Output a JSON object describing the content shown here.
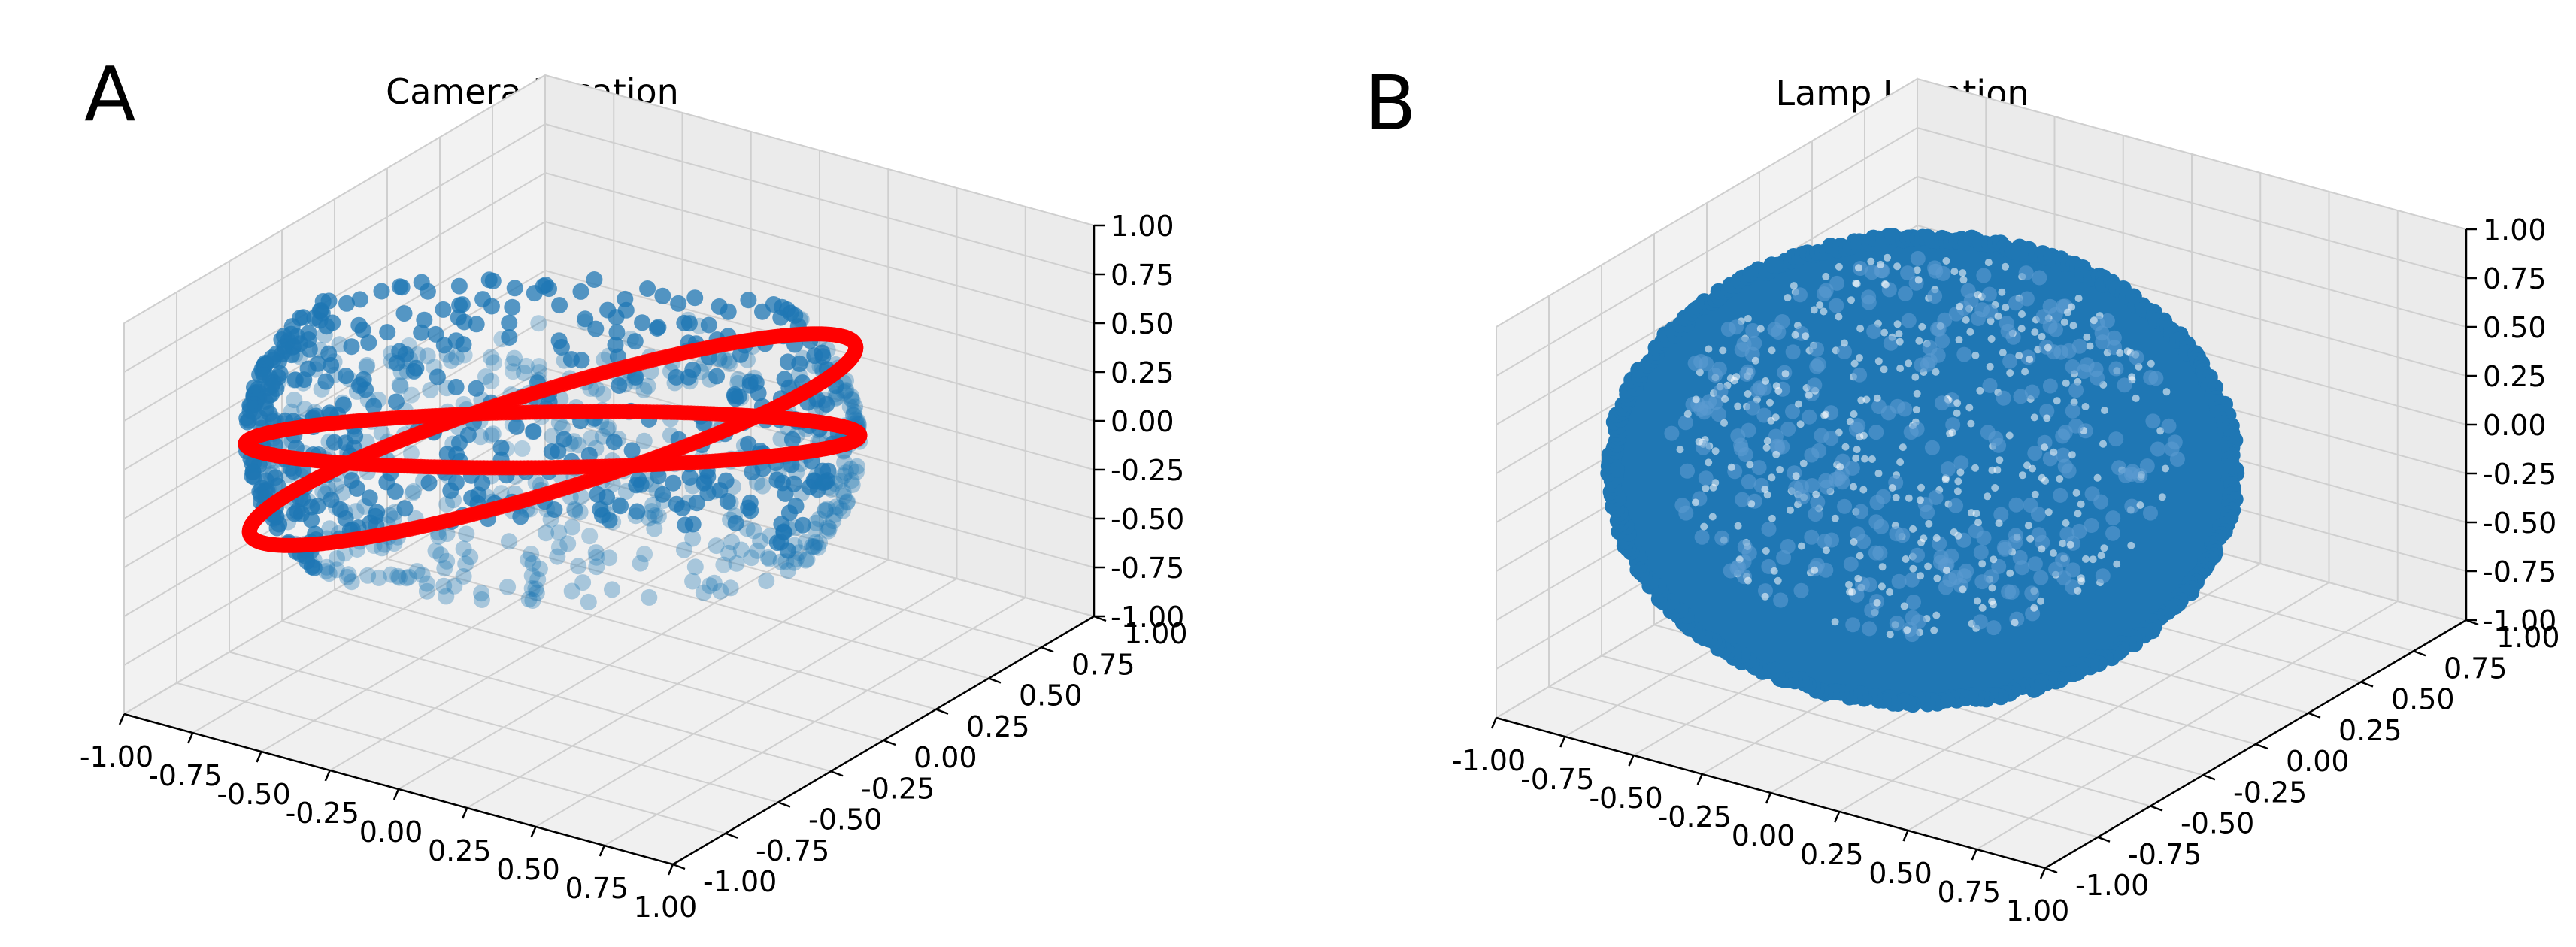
{
  "figure": {
    "panel_letters": [
      "A",
      "B"
    ]
  },
  "chart_data": [
    {
      "type": "scatter",
      "projection": "3d",
      "title": "Camera Location",
      "xlim": [
        -1.0,
        1.0
      ],
      "ylim": [
        -1.0,
        1.0
      ],
      "zlim": [
        -1.0,
        1.0
      ],
      "grid": true,
      "xticks": [
        "-1.00",
        "-0.75",
        "-0.50",
        "-0.25",
        "0.00",
        "0.25",
        "0.50",
        "0.75",
        "1.00"
      ],
      "yticks": [
        "-1.00",
        "-0.75",
        "-0.50",
        "-0.25",
        "0.00",
        "0.25",
        "0.50",
        "0.75",
        "1.00"
      ],
      "zticks": [
        "-1.00",
        "-0.75",
        "-0.50",
        "-0.25",
        "0.00",
        "0.25",
        "0.50",
        "0.75",
        "1.00"
      ],
      "series": [
        {
          "color": "#1f77b4",
          "marker": "circle",
          "distribution": "points near a sphere of radius 1, concentrated near the equator, |z| < 0.6",
          "points": [
            [
              1.0,
              0.0,
              0.0
            ],
            [
              0.92,
              0.38,
              0.05
            ],
            [
              0.71,
              0.71,
              -0.1
            ],
            [
              0.38,
              0.92,
              0.15
            ],
            [
              0.0,
              1.0,
              -0.05
            ],
            [
              -0.38,
              0.92,
              0.1
            ],
            [
              -0.71,
              0.71,
              -0.15
            ],
            [
              -0.92,
              0.38,
              0.05
            ],
            [
              -1.0,
              0.0,
              0.0
            ],
            [
              -0.92,
              -0.38,
              -0.1
            ],
            [
              -0.71,
              -0.71,
              0.1
            ],
            [
              -0.38,
              -0.92,
              -0.05
            ],
            [
              0.0,
              -1.0,
              0.05
            ],
            [
              0.38,
              -0.92,
              0.1
            ],
            [
              0.71,
              -0.71,
              -0.1
            ],
            [
              0.92,
              -0.38,
              0.15
            ],
            [
              0.8,
              0.3,
              0.5
            ],
            [
              -0.6,
              0.5,
              0.55
            ],
            [
              0.3,
              -0.8,
              -0.5
            ],
            [
              -0.7,
              -0.4,
              -0.45
            ],
            [
              0.5,
              0.6,
              -0.55
            ],
            [
              -0.3,
              0.8,
              0.45
            ],
            [
              0.6,
              -0.5,
              0.5
            ],
            [
              -0.8,
              0.2,
              -0.5
            ]
          ]
        },
        {
          "color": "#ff0000",
          "marker": "circle",
          "distribution": "dense circular rings (great circles) of radius 1",
          "rings": [
            {
              "plane": "z = 0 (tilted ring)",
              "tilt_deg": 20
            },
            {
              "plane": "tilted great circle",
              "tilt_deg": -35
            }
          ]
        }
      ]
    },
    {
      "type": "scatter",
      "projection": "3d",
      "title": "Lamp Location",
      "xlim": [
        -1.0,
        1.0
      ],
      "ylim": [
        -1.0,
        1.0
      ],
      "zlim": [
        -1.0,
        1.0
      ],
      "grid": true,
      "xticks": [
        "-1.00",
        "-0.75",
        "-0.50",
        "-0.25",
        "0.00",
        "0.25",
        "0.50",
        "0.75",
        "1.00"
      ],
      "yticks": [
        "-1.00",
        "-0.75",
        "-0.50",
        "-0.25",
        "0.00",
        "0.25",
        "0.50",
        "0.75",
        "1.00"
      ],
      "zticks": [
        "-1.00",
        "-0.75",
        "-0.50",
        "-0.25",
        "0.00",
        "0.25",
        "0.50",
        "0.75",
        "1.00"
      ],
      "series": [
        {
          "color": "#1f77b4",
          "marker": "circle",
          "distribution": "dense uniform sampling over the full unit sphere"
        }
      ]
    }
  ]
}
